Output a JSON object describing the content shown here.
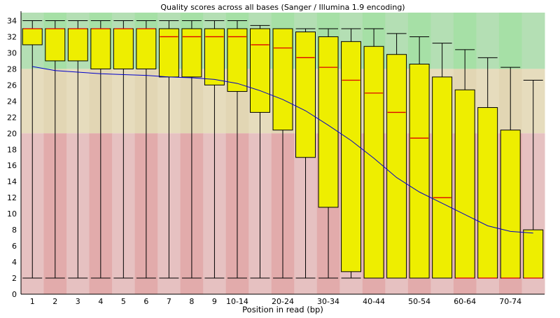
{
  "chart_data": {
    "type": "box",
    "title": "Quality scores across all bases (Sanger / Illumina 1.9 encoding)",
    "xlabel": "Position in read (bp)",
    "ylabel": "",
    "ylim": [
      0,
      35
    ],
    "yticks": [
      0,
      2,
      4,
      6,
      8,
      10,
      12,
      14,
      16,
      18,
      20,
      22,
      24,
      26,
      28,
      30,
      32,
      34
    ],
    "quality_bands": [
      {
        "name": "good",
        "range": [
          28,
          35
        ],
        "colors": [
          "#b4dfb4",
          "#a6e0a6"
        ]
      },
      {
        "name": "reasonable",
        "range": [
          20,
          28
        ],
        "colors": [
          "#e6dcbd",
          "#e2d6b4"
        ]
      },
      {
        "name": "poor",
        "range": [
          0,
          20
        ],
        "colors": [
          "#e6c1c1",
          "#e2abab"
        ]
      }
    ],
    "categories": [
      "1",
      "2",
      "3",
      "4",
      "5",
      "6",
      "7",
      "8",
      "9",
      "10-14",
      "15-19",
      "20-24",
      "25-29",
      "30-34",
      "35-39",
      "40-44",
      "45-49",
      "50-54",
      "55-59",
      "60-64",
      "65-69",
      "70-74",
      "75-76"
    ],
    "tick_labels": [
      "1",
      "2",
      "3",
      "4",
      "5",
      "6",
      "7",
      "8",
      "9",
      "10-14",
      "",
      "20-24",
      "",
      "30-34",
      "",
      "40-44",
      "",
      "50-54",
      "",
      "60-64",
      "",
      "70-74",
      ""
    ],
    "boxes": [
      {
        "whisker_low": 2,
        "q1": 31,
        "median": 33,
        "q3": 33,
        "whisker_high": 34
      },
      {
        "whisker_low": 2,
        "q1": 29,
        "median": 33,
        "q3": 33,
        "whisker_high": 34
      },
      {
        "whisker_low": 2,
        "q1": 29,
        "median": 33,
        "q3": 33,
        "whisker_high": 34
      },
      {
        "whisker_low": 2,
        "q1": 28,
        "median": 33,
        "q3": 33,
        "whisker_high": 34
      },
      {
        "whisker_low": 2,
        "q1": 28,
        "median": 33,
        "q3": 33,
        "whisker_high": 34
      },
      {
        "whisker_low": 2,
        "q1": 28,
        "median": 33,
        "q3": 33,
        "whisker_high": 34
      },
      {
        "whisker_low": 2,
        "q1": 27,
        "median": 32,
        "q3": 33,
        "whisker_high": 34
      },
      {
        "whisker_low": 2,
        "q1": 27,
        "median": 32,
        "q3": 33,
        "whisker_high": 34
      },
      {
        "whisker_low": 2,
        "q1": 26,
        "median": 32,
        "q3": 33,
        "whisker_high": 34
      },
      {
        "whisker_low": 2,
        "q1": 25.2,
        "median": 32,
        "q3": 33,
        "whisker_high": 34
      },
      {
        "whisker_low": 2,
        "q1": 22.6,
        "median": 31,
        "q3": 33,
        "whisker_high": 33.4
      },
      {
        "whisker_low": 2,
        "q1": 20.4,
        "median": 30.6,
        "q3": 33,
        "whisker_high": 33
      },
      {
        "whisker_low": 2,
        "q1": 17,
        "median": 29.4,
        "q3": 32.6,
        "whisker_high": 33
      },
      {
        "whisker_low": 2,
        "q1": 10.8,
        "median": 28.2,
        "q3": 32,
        "whisker_high": 33
      },
      {
        "whisker_low": 2,
        "q1": 2.8,
        "median": 26.6,
        "q3": 31.4,
        "whisker_high": 33
      },
      {
        "whisker_low": 2,
        "q1": 2,
        "median": 25,
        "q3": 30.8,
        "whisker_high": 33
      },
      {
        "whisker_low": 2,
        "q1": 2,
        "median": 22.6,
        "q3": 29.8,
        "whisker_high": 32.4
      },
      {
        "whisker_low": 2,
        "q1": 2,
        "median": 19.4,
        "q3": 28.6,
        "whisker_high": 32
      },
      {
        "whisker_low": 2,
        "q1": 2,
        "median": 12,
        "q3": 27,
        "whisker_high": 31.2
      },
      {
        "whisker_low": 2,
        "q1": 2,
        "median": 2,
        "q3": 25.4,
        "whisker_high": 30.4
      },
      {
        "whisker_low": 2,
        "q1": 2,
        "median": 2,
        "q3": 23.2,
        "whisker_high": 29.4
      },
      {
        "whisker_low": 2,
        "q1": 2,
        "median": 2,
        "q3": 20.4,
        "whisker_high": 28.2
      },
      {
        "whisker_low": 2,
        "q1": 2,
        "median": 2,
        "q3": 8,
        "whisker_high": 26.6
      }
    ],
    "mean_line": {
      "color": "#0000cc",
      "values": [
        28.3,
        27.8,
        27.6,
        27.4,
        27.3,
        27.2,
        27.0,
        26.9,
        26.7,
        26.2,
        25.3,
        24.2,
        22.8,
        21.0,
        19.1,
        16.9,
        14.5,
        12.7,
        11.3,
        9.9,
        8.5,
        7.8,
        7.6
      ]
    },
    "colors": {
      "box_fill": "#eeee00",
      "box_stroke": "#000000",
      "median": "#dd0000",
      "whisker": "#000000"
    },
    "grid": false,
    "legend": "none"
  }
}
